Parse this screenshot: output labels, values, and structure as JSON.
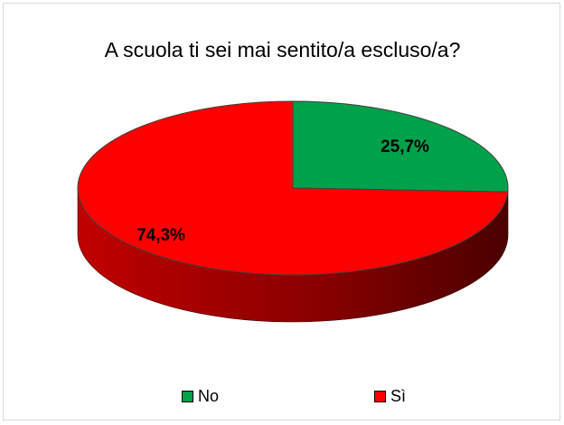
{
  "chart_data": {
    "type": "pie",
    "title": "A scuola ti sei mai sentito/a escluso/a?",
    "categories": [
      "No",
      "Sì"
    ],
    "values": [
      25.7,
      74.3
    ],
    "labels": [
      "25,7%",
      "74,3%"
    ],
    "colors": [
      "#00a14b",
      "#ff0000"
    ],
    "side_colors": [
      "#006e33",
      "#8b0000"
    ],
    "legend_position": "bottom",
    "style": "3d"
  }
}
